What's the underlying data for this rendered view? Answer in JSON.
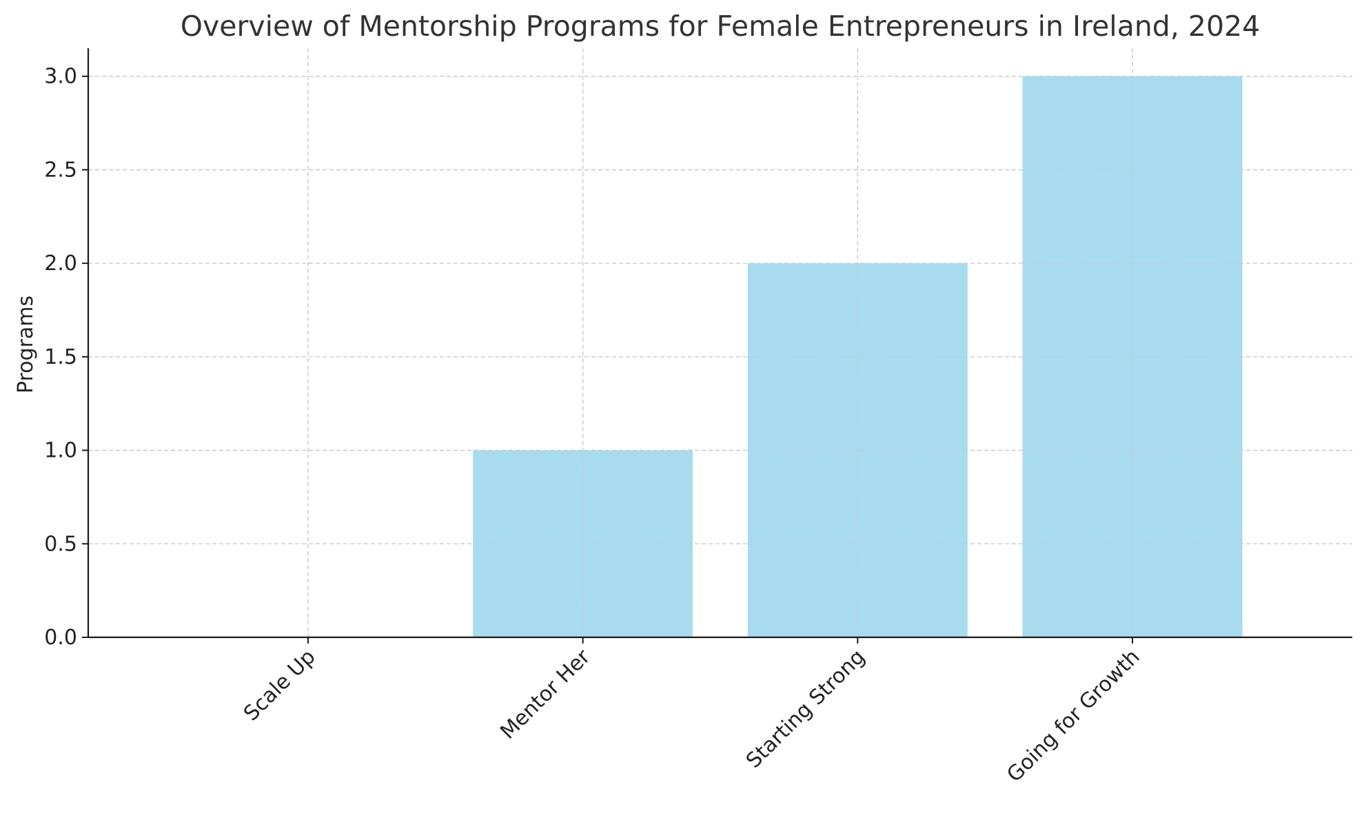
{
  "chart_data": {
    "type": "bar",
    "title": "Overview of Mentorship Programs for Female Entrepreneurs in Ireland, 2024",
    "xlabel": "",
    "ylabel": "Programs",
    "categories": [
      "Scale Up",
      "Mentor Her",
      "Starting Strong",
      "Going for Growth"
    ],
    "values": [
      0,
      1,
      2,
      3
    ],
    "ylim": [
      0,
      3.15
    ],
    "yticks": [
      "0.0",
      "0.5",
      "1.0",
      "1.5",
      "2.0",
      "2.5",
      "3.0"
    ],
    "grid": true,
    "bar_color": "#a8dbee",
    "legend": "none"
  }
}
